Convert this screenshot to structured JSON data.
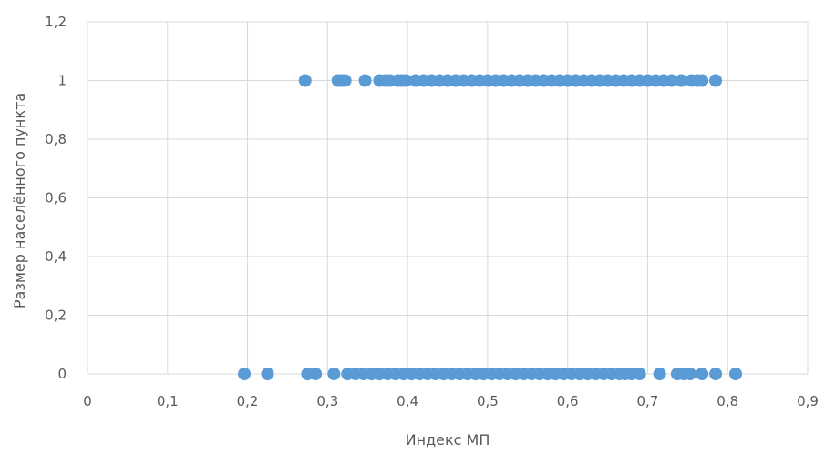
{
  "chart_data": {
    "type": "scatter",
    "title": "",
    "xlabel": "Индекс МП",
    "ylabel": "Размер населённого пункта",
    "xlim": [
      0,
      0.9
    ],
    "ylim": [
      0,
      1.2
    ],
    "x_ticks": [
      "0",
      "0,1",
      "0,2",
      "0,3",
      "0,4",
      "0,5",
      "0,6",
      "0,7",
      "0,8",
      "0,9"
    ],
    "y_ticks": [
      "0",
      "0,2",
      "0,4",
      "0,6",
      "0,8",
      "1",
      "1,2"
    ],
    "grid": true,
    "marker_color": "#5B9BD5",
    "gridline_color": "#D9D9D9",
    "series": [
      {
        "name": "",
        "points": [
          {
            "x": 0.272,
            "y": 1
          },
          {
            "x": 0.313,
            "y": 1
          },
          {
            "x": 0.318,
            "y": 1
          },
          {
            "x": 0.322,
            "y": 1
          },
          {
            "x": 0.347,
            "y": 1
          },
          {
            "x": 0.365,
            "y": 1
          },
          {
            "x": 0.372,
            "y": 1
          },
          {
            "x": 0.378,
            "y": 1
          },
          {
            "x": 0.388,
            "y": 1
          },
          {
            "x": 0.393,
            "y": 1
          },
          {
            "x": 0.398,
            "y": 1
          },
          {
            "x": 0.41,
            "y": 1
          },
          {
            "x": 0.42,
            "y": 1
          },
          {
            "x": 0.43,
            "y": 1
          },
          {
            "x": 0.44,
            "y": 1
          },
          {
            "x": 0.45,
            "y": 1
          },
          {
            "x": 0.46,
            "y": 1
          },
          {
            "x": 0.47,
            "y": 1
          },
          {
            "x": 0.48,
            "y": 1
          },
          {
            "x": 0.49,
            "y": 1
          },
          {
            "x": 0.5,
            "y": 1
          },
          {
            "x": 0.51,
            "y": 1
          },
          {
            "x": 0.52,
            "y": 1
          },
          {
            "x": 0.53,
            "y": 1
          },
          {
            "x": 0.54,
            "y": 1
          },
          {
            "x": 0.55,
            "y": 1
          },
          {
            "x": 0.56,
            "y": 1
          },
          {
            "x": 0.57,
            "y": 1
          },
          {
            "x": 0.58,
            "y": 1
          },
          {
            "x": 0.59,
            "y": 1
          },
          {
            "x": 0.6,
            "y": 1
          },
          {
            "x": 0.61,
            "y": 1
          },
          {
            "x": 0.62,
            "y": 1
          },
          {
            "x": 0.63,
            "y": 1
          },
          {
            "x": 0.64,
            "y": 1
          },
          {
            "x": 0.65,
            "y": 1
          },
          {
            "x": 0.66,
            "y": 1
          },
          {
            "x": 0.67,
            "y": 1
          },
          {
            "x": 0.68,
            "y": 1
          },
          {
            "x": 0.69,
            "y": 1
          },
          {
            "x": 0.7,
            "y": 1
          },
          {
            "x": 0.71,
            "y": 1
          },
          {
            "x": 0.72,
            "y": 1
          },
          {
            "x": 0.73,
            "y": 1
          },
          {
            "x": 0.742,
            "y": 1
          },
          {
            "x": 0.755,
            "y": 1
          },
          {
            "x": 0.762,
            "y": 1
          },
          {
            "x": 0.768,
            "y": 1
          },
          {
            "x": 0.785,
            "y": 1
          },
          {
            "x": 0.196,
            "y": 0
          },
          {
            "x": 0.225,
            "y": 0
          },
          {
            "x": 0.275,
            "y": 0
          },
          {
            "x": 0.285,
            "y": 0
          },
          {
            "x": 0.308,
            "y": 0
          },
          {
            "x": 0.325,
            "y": 0
          },
          {
            "x": 0.335,
            "y": 0
          },
          {
            "x": 0.345,
            "y": 0
          },
          {
            "x": 0.355,
            "y": 0
          },
          {
            "x": 0.365,
            "y": 0
          },
          {
            "x": 0.375,
            "y": 0
          },
          {
            "x": 0.385,
            "y": 0
          },
          {
            "x": 0.395,
            "y": 0
          },
          {
            "x": 0.405,
            "y": 0
          },
          {
            "x": 0.415,
            "y": 0
          },
          {
            "x": 0.425,
            "y": 0
          },
          {
            "x": 0.435,
            "y": 0
          },
          {
            "x": 0.445,
            "y": 0
          },
          {
            "x": 0.455,
            "y": 0
          },
          {
            "x": 0.465,
            "y": 0
          },
          {
            "x": 0.475,
            "y": 0
          },
          {
            "x": 0.485,
            "y": 0
          },
          {
            "x": 0.495,
            "y": 0
          },
          {
            "x": 0.505,
            "y": 0
          },
          {
            "x": 0.515,
            "y": 0
          },
          {
            "x": 0.525,
            "y": 0
          },
          {
            "x": 0.535,
            "y": 0
          },
          {
            "x": 0.545,
            "y": 0
          },
          {
            "x": 0.555,
            "y": 0
          },
          {
            "x": 0.565,
            "y": 0
          },
          {
            "x": 0.575,
            "y": 0
          },
          {
            "x": 0.585,
            "y": 0
          },
          {
            "x": 0.595,
            "y": 0
          },
          {
            "x": 0.605,
            "y": 0
          },
          {
            "x": 0.615,
            "y": 0
          },
          {
            "x": 0.625,
            "y": 0
          },
          {
            "x": 0.635,
            "y": 0
          },
          {
            "x": 0.645,
            "y": 0
          },
          {
            "x": 0.655,
            "y": 0
          },
          {
            "x": 0.665,
            "y": 0
          },
          {
            "x": 0.672,
            "y": 0
          },
          {
            "x": 0.68,
            "y": 0
          },
          {
            "x": 0.69,
            "y": 0
          },
          {
            "x": 0.715,
            "y": 0
          },
          {
            "x": 0.737,
            "y": 0
          },
          {
            "x": 0.745,
            "y": 0
          },
          {
            "x": 0.753,
            "y": 0
          },
          {
            "x": 0.768,
            "y": 0
          },
          {
            "x": 0.785,
            "y": 0
          },
          {
            "x": 0.81,
            "y": 0
          }
        ]
      }
    ]
  }
}
